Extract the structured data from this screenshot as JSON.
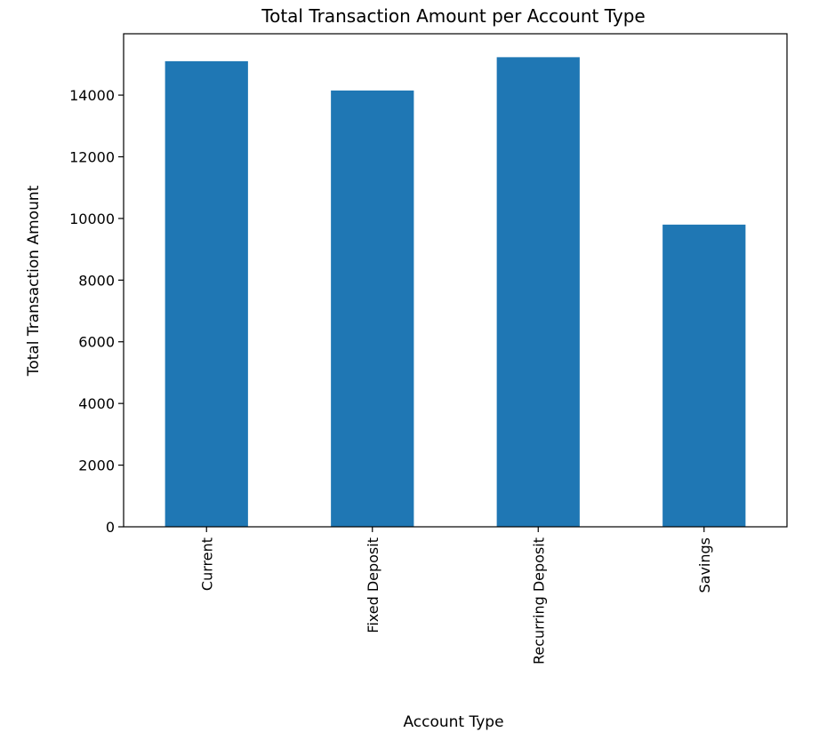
{
  "chart_data": {
    "type": "bar",
    "title": "Total Transaction Amount per Account Type",
    "xlabel": "Account Type",
    "ylabel": "Total Transaction Amount",
    "categories": [
      "Current",
      "Fixed Deposit",
      "Recurring Deposit",
      "Savings"
    ],
    "values": [
      15100,
      14150,
      15230,
      9800
    ],
    "ylim": [
      0,
      15990
    ],
    "yticks": [
      0,
      2000,
      4000,
      6000,
      8000,
      10000,
      12000,
      14000
    ],
    "bar_color": "#1f77b4",
    "grid": false,
    "legend": "none"
  }
}
